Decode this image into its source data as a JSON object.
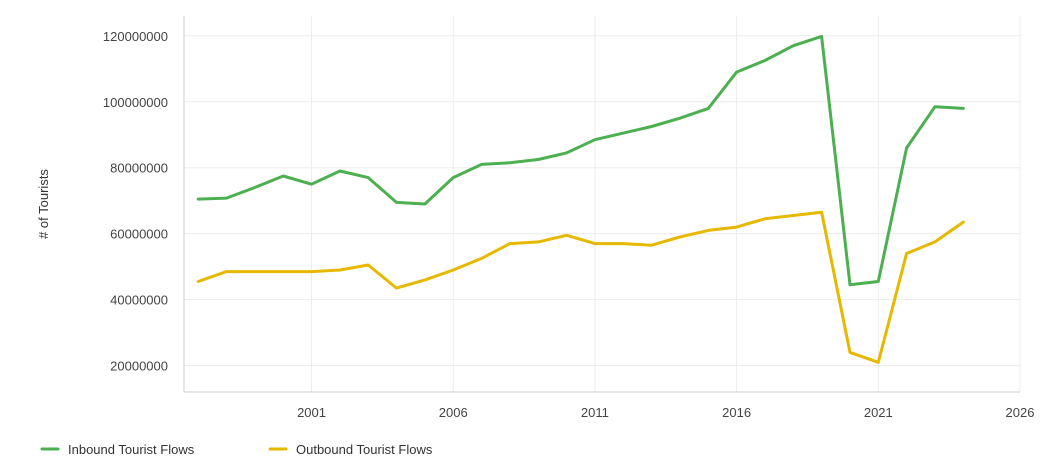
{
  "chart_data": {
    "type": "line",
    "title": "",
    "xlabel": "",
    "ylabel": "# of Tourists",
    "xlim": [
      1996.5,
      2026
    ],
    "ylim": [
      12000000,
      126000000
    ],
    "x_ticks": [
      2001,
      2006,
      2011,
      2016,
      2021,
      2026
    ],
    "x_tick_labels": [
      "2001",
      "2006",
      "2011",
      "2016",
      "2021",
      "2026"
    ],
    "y_ticks": [
      20000000,
      40000000,
      60000000,
      80000000,
      100000000,
      120000000
    ],
    "y_tick_labels": [
      "20000000",
      "40000000",
      "60000000",
      "80000000",
      "100000000",
      "120000000"
    ],
    "grid": true,
    "legend_position": "bottom-left",
    "x": [
      1997,
      1998,
      1999,
      2000,
      2001,
      2002,
      2003,
      2004,
      2005,
      2006,
      2007,
      2008,
      2009,
      2010,
      2011,
      2012,
      2013,
      2014,
      2015,
      2016,
      2017,
      2018,
      2019,
      2020,
      2021,
      2022,
      2023,
      2024
    ],
    "series": [
      {
        "name": "Inbound Tourist Flows",
        "color": "#4caf50",
        "values": [
          70500000,
          70800000,
          74000000,
          77500000,
          75000000,
          79000000,
          77000000,
          69500000,
          69000000,
          77000000,
          81000000,
          81500000,
          82500000,
          84500000,
          88500000,
          90500000,
          92500000,
          95000000,
          98000000,
          109000000,
          112500000,
          117000000,
          119800000,
          44500000,
          45500000,
          86000000,
          98500000,
          98000000
        ]
      },
      {
        "name": "Outbound Tourist Flows",
        "color": "#e6b800",
        "values": [
          45500000,
          48500000,
          48500000,
          48500000,
          48500000,
          49000000,
          50500000,
          43500000,
          46000000,
          49000000,
          52500000,
          57000000,
          57500000,
          59500000,
          57000000,
          57000000,
          56500000,
          59000000,
          61000000,
          62000000,
          64500000,
          65500000,
          66500000,
          24000000,
          21000000,
          54000000,
          57500000,
          63500000
        ]
      }
    ]
  }
}
